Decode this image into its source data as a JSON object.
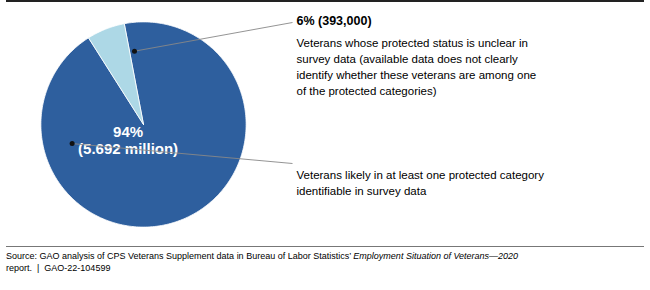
{
  "chart_data": {
    "type": "pie",
    "values": [
      94,
      6
    ],
    "colors": [
      "#2E5F9E",
      "#ADD8E6"
    ],
    "value_labels": [
      "94%\n(5.692 million)",
      null
    ],
    "annotations": [
      {
        "text": "Veterans likely in at least one protected category\nidentifiable in survey data"
      },
      {
        "title": "6% (393,000)",
        "text": "Veterans whose protected status is unclear in\nsurvey data (available data does not clearly\nidentify whether these veterans are among one\nof the protected categories)"
      }
    ],
    "source": [
      "Source: GAO analysis of CPS Veterans Supplement data in Bureau of Labor Statistics’ ",
      "Employment Situation of Veterans—2020",
      "report.  |  GAO-22-104599"
    ]
  }
}
